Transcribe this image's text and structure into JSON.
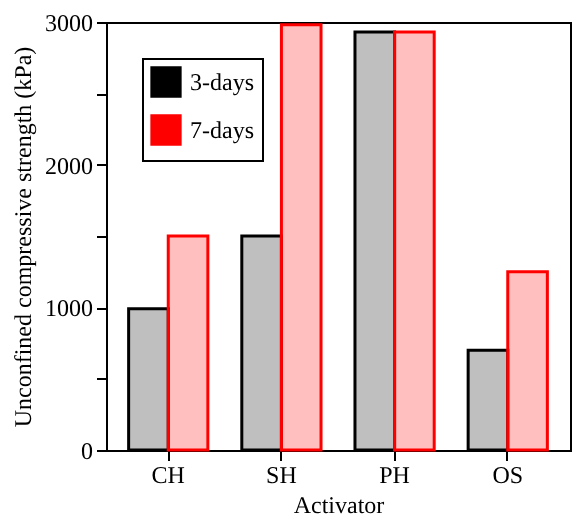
{
  "chart_data": {
    "type": "bar",
    "xlabel": "Activator",
    "ylabel": "Unconfined compressive strength (kPa)",
    "categories": [
      "CH",
      "SH",
      "PH",
      "OS"
    ],
    "series": [
      {
        "name": "3-days",
        "color": "#000000",
        "values": [
          990,
          1500,
          2930,
          700
        ]
      },
      {
        "name": "7-days",
        "color": "#ff0000",
        "values": [
          1500,
          2980,
          2930,
          1250
        ]
      }
    ],
    "ylim": [
      0,
      3000
    ],
    "yticks": [
      0,
      {
        "value": 500,
        "label": null
      },
      1000,
      {
        "value": 1500,
        "label": null
      },
      2000,
      {
        "value": 2500,
        "label": null
      },
      3000
    ],
    "grid": false,
    "legend": "top left"
  }
}
